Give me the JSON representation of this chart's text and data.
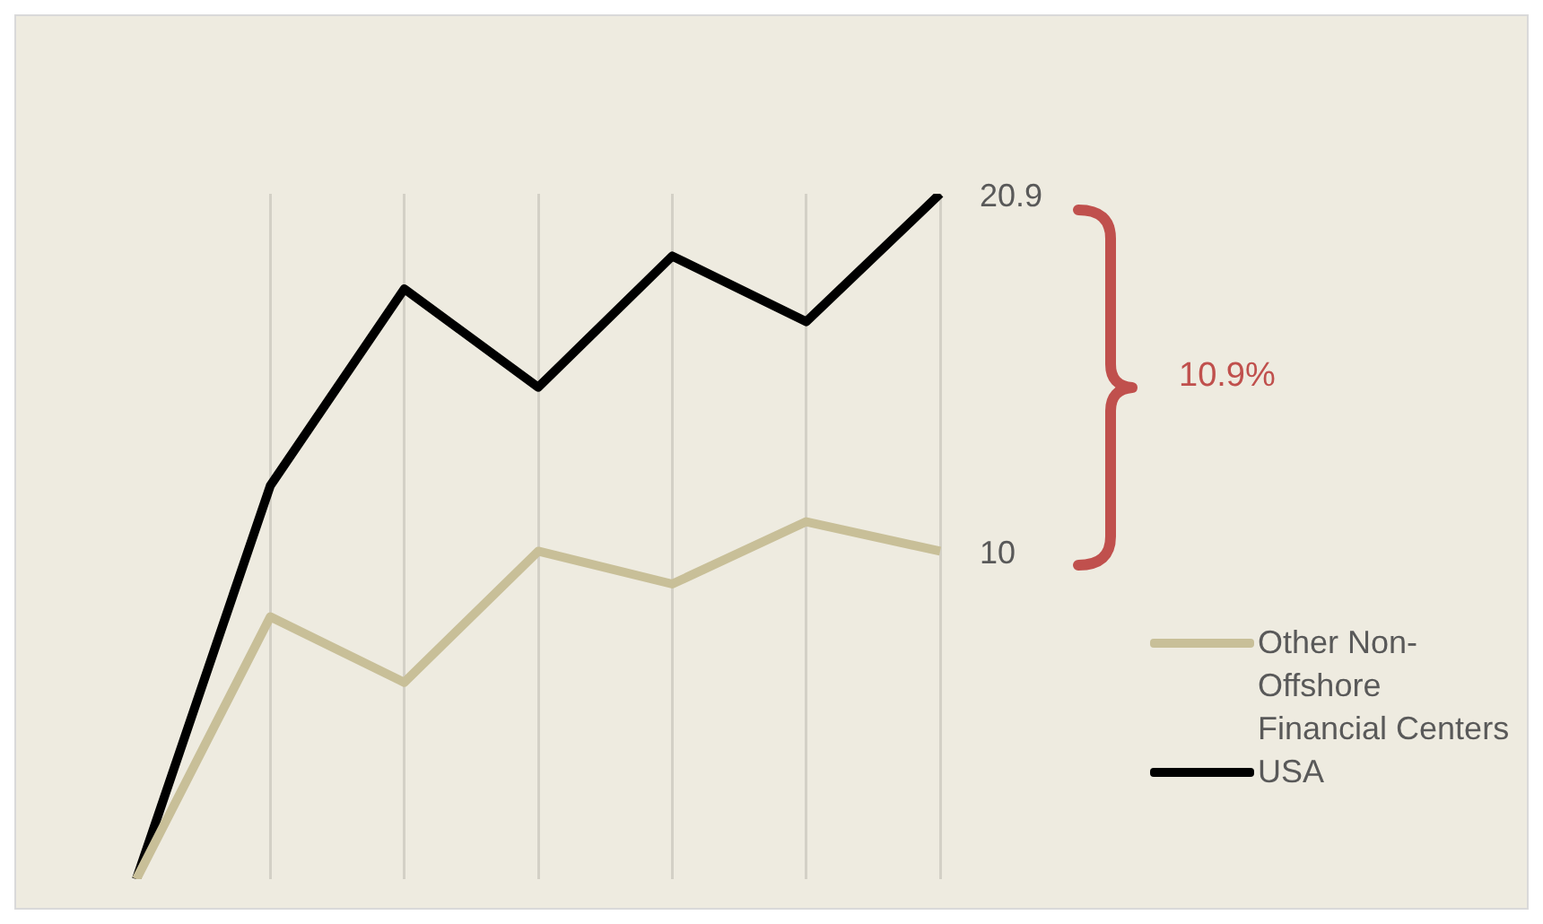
{
  "chart_data": {
    "type": "line",
    "categories": [
      null,
      null,
      null,
      null,
      null,
      null,
      null
    ],
    "series": [
      {
        "name": "Other Non-Offshore Financial Centers",
        "color": "#c8bf98",
        "values": [
          0,
          8,
          6,
          10,
          9,
          10.9,
          10
        ],
        "value_labels": [
          null,
          null,
          null,
          null,
          null,
          null,
          "10"
        ]
      },
      {
        "name": "USA",
        "color": "#000000",
        "values": [
          0,
          12,
          18,
          15,
          19,
          17,
          20.9
        ],
        "value_labels": [
          null,
          null,
          null,
          null,
          null,
          null,
          "20.9"
        ]
      }
    ],
    "annotations": [
      "10.9%"
    ],
    "grid": "x",
    "legend": "right",
    "marker": "none",
    "line_style": "solid",
    "tick_labels": false
  }
}
